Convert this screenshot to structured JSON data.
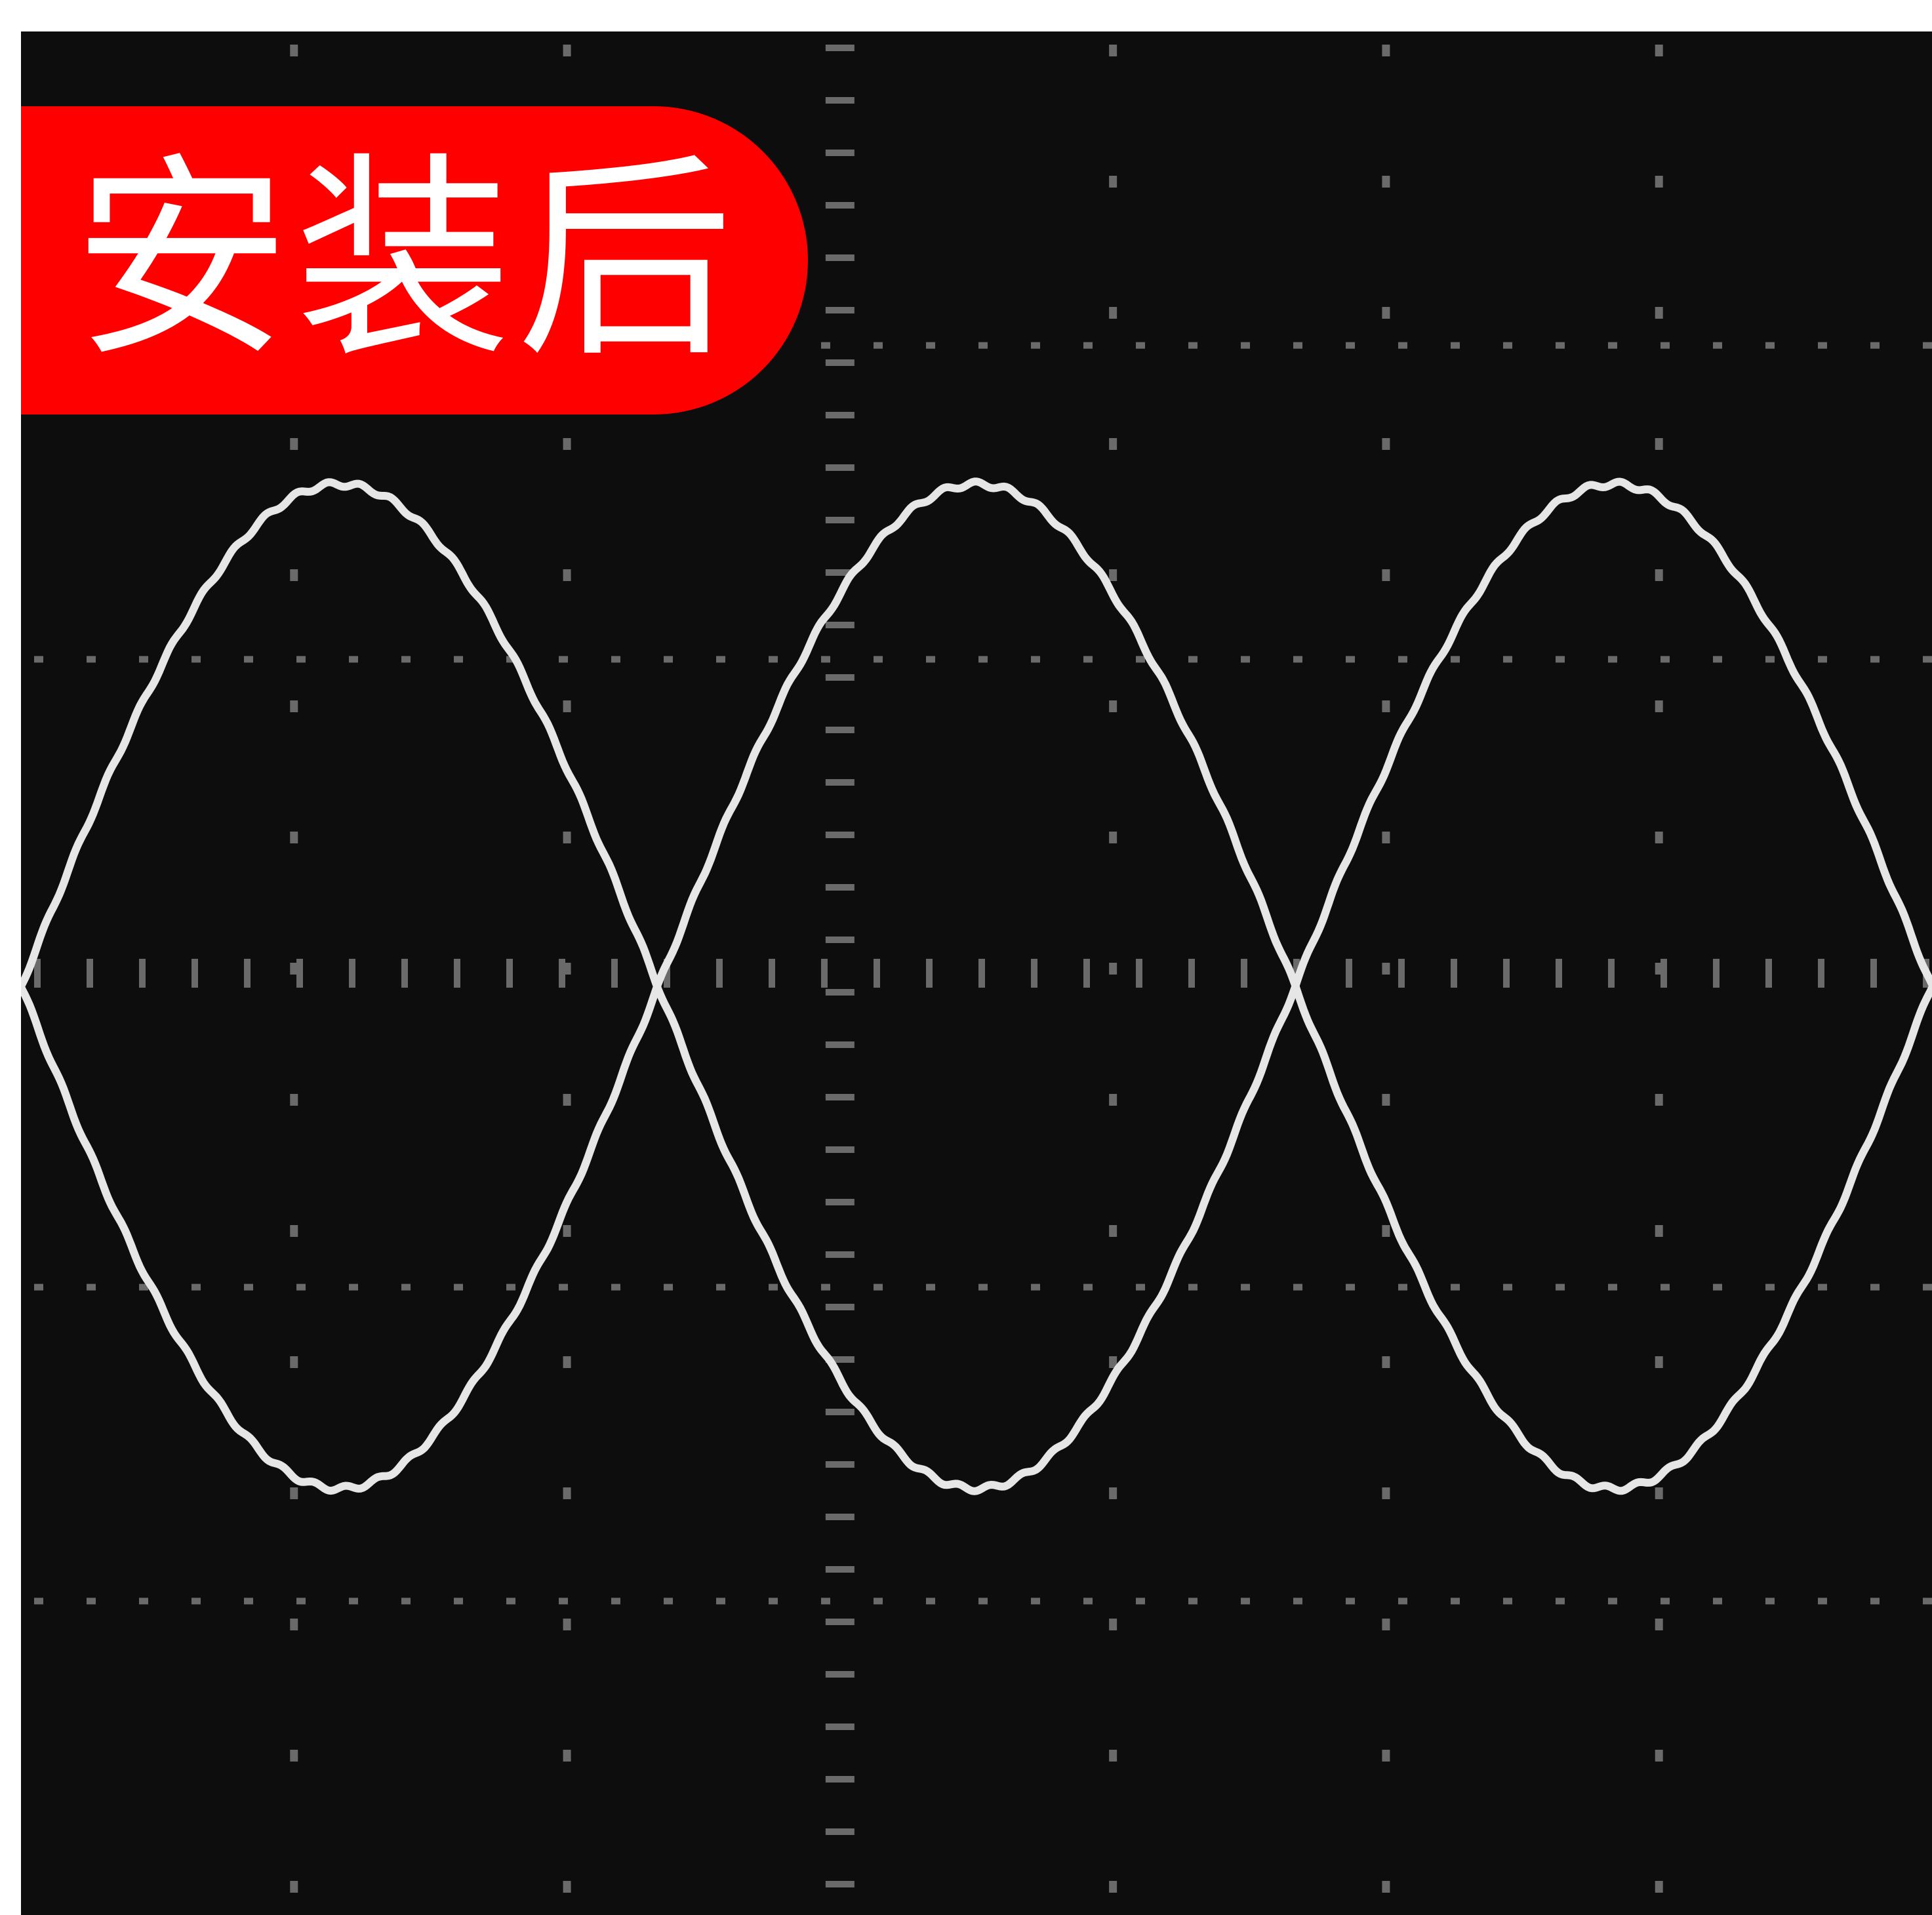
{
  "label": {
    "text": "安装后",
    "background_color": "#ff0000",
    "text_color": "#ffffff"
  },
  "oscilloscope": {
    "background_color": "#0d0d0d",
    "grid_color": "#6a6a6a",
    "trace_color": "#e6e6e6",
    "grid_divisions": {
      "horizontal": 7,
      "vertical": 6
    },
    "traces": [
      {
        "shape": "sine",
        "cycles_visible": 1.5,
        "amplitude_div": 1.6,
        "phase": "positive"
      },
      {
        "shape": "sine",
        "cycles_visible": 1.5,
        "amplitude_div": 1.6,
        "phase": "inverted"
      }
    ]
  }
}
